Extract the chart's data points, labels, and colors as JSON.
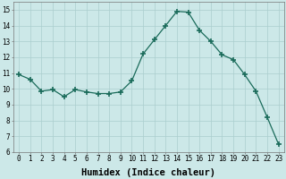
{
  "x": [
    0,
    1,
    2,
    3,
    4,
    5,
    6,
    7,
    8,
    9,
    10,
    11,
    12,
    13,
    14,
    15,
    16,
    17,
    18,
    19,
    20,
    21,
    22,
    23
  ],
  "y": [
    10.9,
    10.6,
    9.85,
    9.95,
    9.5,
    9.95,
    9.8,
    9.7,
    9.7,
    9.8,
    10.5,
    12.2,
    13.1,
    14.0,
    14.9,
    14.85,
    13.7,
    13.0,
    12.15,
    11.85,
    10.9,
    9.85,
    8.2,
    6.5
  ],
  "line_color": "#1a6b5a",
  "marker": "+",
  "marker_size": 4,
  "marker_lw": 1.2,
  "bg_color": "#cce8e8",
  "grid_color": "#aacece",
  "xlabel": "Humidex (Indice chaleur)",
  "ylabel": "",
  "xlim": [
    -0.5,
    23.5
  ],
  "ylim": [
    6,
    15.5
  ],
  "yticks": [
    6,
    7,
    8,
    9,
    10,
    11,
    12,
    13,
    14,
    15
  ],
  "xticks": [
    0,
    1,
    2,
    3,
    4,
    5,
    6,
    7,
    8,
    9,
    10,
    11,
    12,
    13,
    14,
    15,
    16,
    17,
    18,
    19,
    20,
    21,
    22,
    23
  ],
  "tick_fontsize": 5.5,
  "xlabel_fontsize": 7.5
}
